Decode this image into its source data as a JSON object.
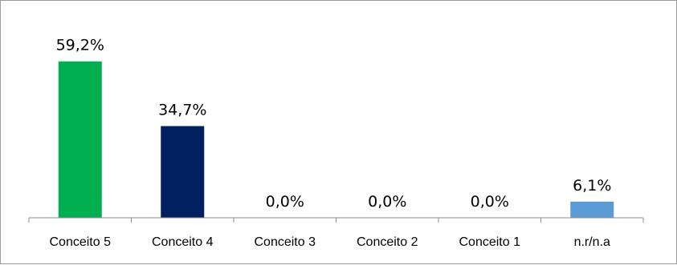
{
  "chart_data": {
    "type": "bar",
    "categories": [
      "Conceito 5",
      "Conceito 4",
      "Conceito 3",
      "Conceito 2",
      "Conceito 1",
      "n.r/n.a"
    ],
    "values": [
      59.2,
      34.7,
      0.0,
      0.0,
      0.0,
      6.1
    ],
    "data_labels": [
      "59,2%",
      "34,7%",
      "0,0%",
      "0,0%",
      "0,0%",
      "6,1%"
    ],
    "colors": [
      "#00b050",
      "#002060",
      "#002060",
      "#002060",
      "#002060",
      "#5b9bd5"
    ],
    "title": "",
    "xlabel": "",
    "ylabel": "",
    "ylim": [
      0,
      70
    ],
    "grid": false,
    "legend": "none"
  }
}
